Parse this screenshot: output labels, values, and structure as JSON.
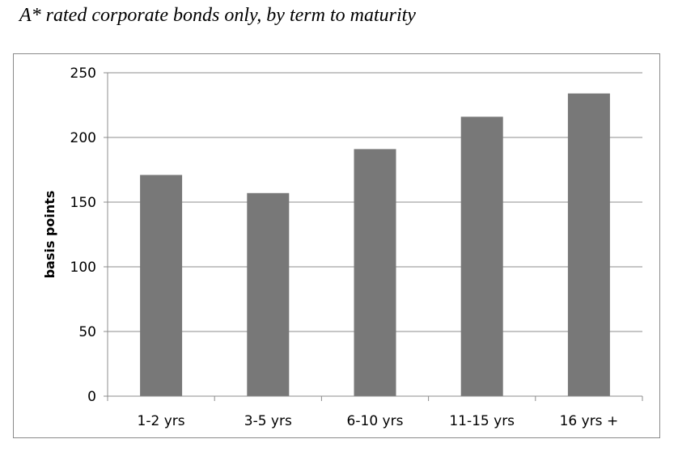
{
  "title": "A* rated corporate bonds only, by term to maturity",
  "chart_data": {
    "type": "bar",
    "categories": [
      "1-2 yrs",
      "3-5 yrs",
      "6-10 yrs",
      "11-15 yrs",
      "16 yrs +"
    ],
    "series": [
      {
        "values": [
          171,
          157,
          191,
          216,
          234
        ]
      }
    ],
    "ylabel": "basis points",
    "xlabel": "",
    "ylim": [
      0,
      250
    ],
    "yticks": [
      0,
      50,
      100,
      150,
      200,
      250
    ],
    "grid": true,
    "bar_color": "#787878",
    "grid_color": "#8c8c8c"
  }
}
